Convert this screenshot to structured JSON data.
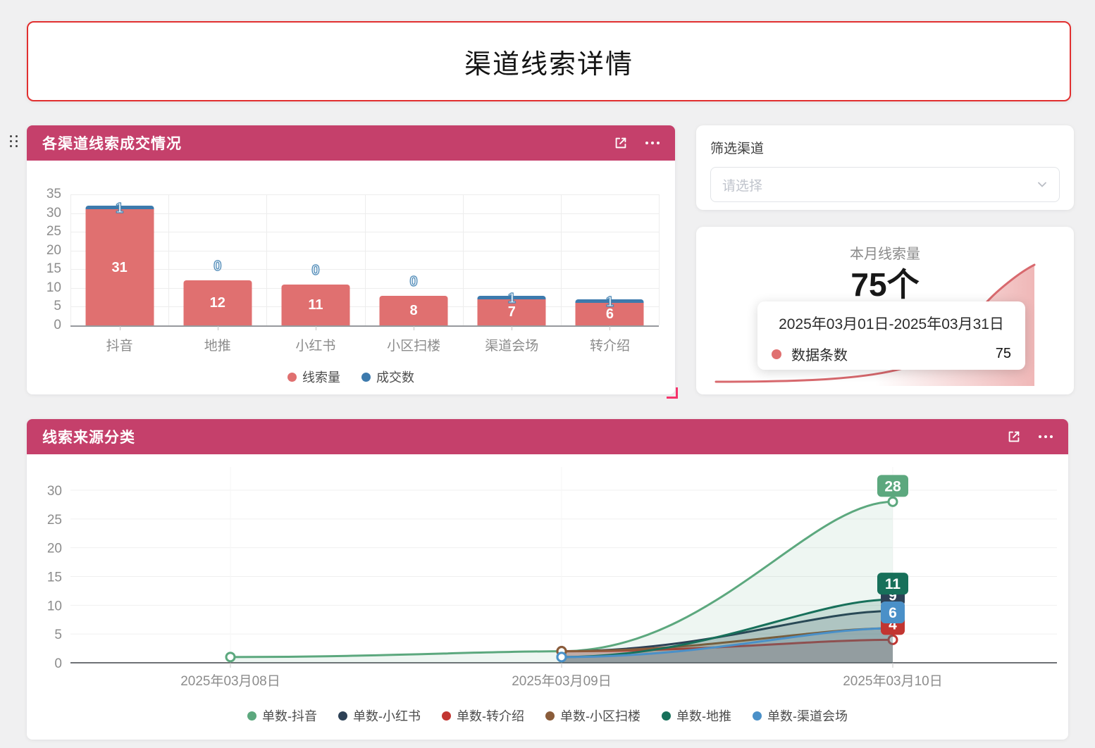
{
  "page": {
    "title": "渠道线索详情",
    "background": "#f0f0f1",
    "accent": "#c5406b",
    "title_border": "#e12f2f"
  },
  "icons": {
    "drag_handle": "⠿",
    "open_in_new": "⧉",
    "ellipsis": "···",
    "chevron_down": "⌄"
  },
  "bar_card": {
    "title": "各渠道线索成交情况"
  },
  "filter_panel": {
    "label": "筛选渠道",
    "placeholder": "请选择"
  },
  "stats_card": {
    "title": "本月线索量",
    "value": "75个",
    "tooltip": {
      "date_range": "2025年03月01日-2025年03月31日",
      "series_label": "数据条数",
      "series_value": "75",
      "dot_color": "#e07070"
    },
    "spark_color": "#d8696e"
  },
  "line_card": {
    "title": "线索来源分类"
  },
  "chart_data": [
    {
      "type": "bar",
      "title": "各渠道线索成交情况",
      "categories": [
        "抖音",
        "地推",
        "小红书",
        "小区扫楼",
        "渠道会场",
        "转介绍"
      ],
      "series": [
        {
          "name": "线索量",
          "color": "#e07070",
          "values": [
            31,
            12,
            11,
            8,
            7,
            6
          ]
        },
        {
          "name": "成交数",
          "color": "#3d7aad",
          "values": [
            1,
            0,
            0,
            0,
            1,
            1
          ]
        }
      ],
      "stacked": true,
      "ylim": [
        0,
        35
      ],
      "yticks": [
        0,
        5,
        10,
        15,
        20,
        25,
        30,
        35
      ],
      "grid": true,
      "legend_position": "bottom"
    },
    {
      "type": "line",
      "title": "线索来源分类",
      "x": [
        "2025年03月08日",
        "2025年03月09日",
        "2025年03月10日"
      ],
      "series": [
        {
          "name": "单数-抖音",
          "color": "#5ca87e",
          "values": [
            1,
            2,
            28
          ]
        },
        {
          "name": "单数-小红书",
          "color": "#2d4156",
          "values": [
            null,
            2,
            9
          ]
        },
        {
          "name": "单数-转介绍",
          "color": "#c23531",
          "values": [
            null,
            2,
            4
          ]
        },
        {
          "name": "单数-小区扫楼",
          "color": "#8a5c3a",
          "values": [
            null,
            2,
            6
          ]
        },
        {
          "name": "单数-地推",
          "color": "#17705a",
          "values": [
            null,
            1,
            11
          ]
        },
        {
          "name": "单数-渠道会场",
          "color": "#4a90c8",
          "values": [
            null,
            1,
            6
          ]
        }
      ],
      "end_labels": [
        28,
        9,
        4,
        6,
        11,
        6
      ],
      "ylim": [
        0,
        32.6
      ],
      "yticks": [
        0,
        5,
        10,
        15,
        20,
        25,
        30
      ],
      "grid": true,
      "smooth": true,
      "legend_position": "bottom"
    }
  ]
}
